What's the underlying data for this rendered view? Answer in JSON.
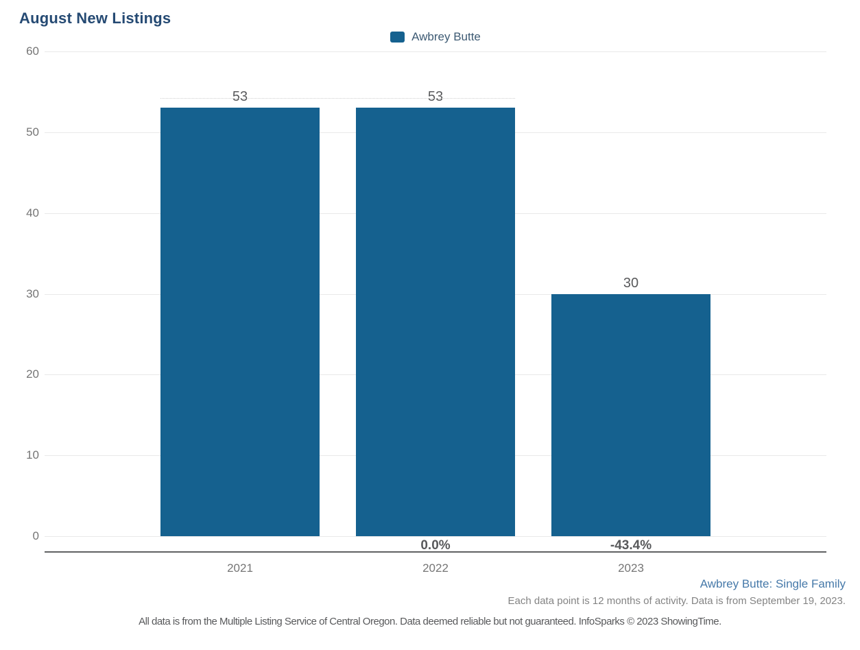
{
  "title": "August New Listings",
  "legend": {
    "label": "Awbrey Butte",
    "swatch_color": "#15618f"
  },
  "chart_data": {
    "type": "bar",
    "title": "August New Listings",
    "series_name": "Awbrey Butte",
    "categories": [
      "2021",
      "2022",
      "2023"
    ],
    "values": [
      53,
      53,
      30
    ],
    "value_labels": [
      "53",
      "53",
      "30"
    ],
    "pct_change": [
      "",
      "0.0%",
      "-43.4%"
    ],
    "ylim": [
      0,
      60
    ],
    "yticks": [
      0,
      10,
      20,
      30,
      40,
      50,
      60
    ],
    "grid": "horizontal",
    "legend_position": "top-center",
    "bar_color": "#15618f"
  },
  "footer": {
    "series_note": "Awbrey Butte: Single Family",
    "data_note": "Each data point is 12 months of activity. Data is from September 19, 2023.",
    "disclaimer": "All data is from the Multiple Listing Service of Central Oregon. Data deemed reliable but not guaranteed. InfoSparks © 2023 ShowingTime."
  },
  "colors": {
    "bar": "#15618f",
    "title_text": "#254a73",
    "axis_text": "#757575",
    "value_text": "#58595b",
    "series_note_text": "#4679a9",
    "gridline": "#e9e9e9",
    "axis_line": "#5f6062"
  }
}
